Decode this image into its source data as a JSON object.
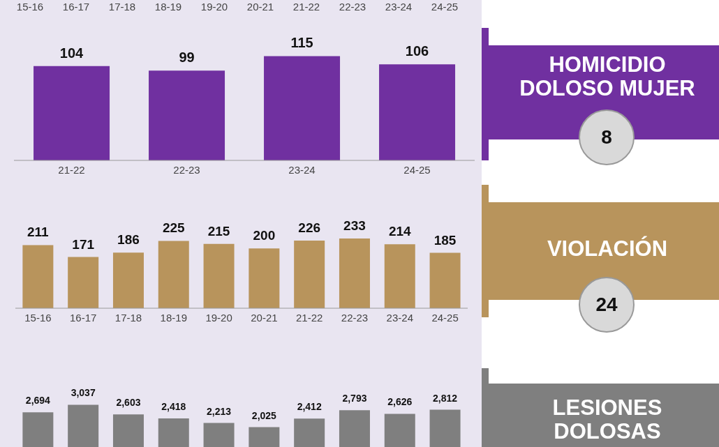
{
  "chart_data": [
    {
      "type": "other",
      "categories": [
        "15-16",
        "16-17",
        "17-18",
        "18-19",
        "19-20",
        "20-21",
        "21-22",
        "22-23",
        "23-24",
        "24-25"
      ]
    },
    {
      "type": "bar",
      "categories": [
        "21-22",
        "22-23",
        "23-24",
        "24-25"
      ],
      "values": [
        104,
        99,
        115,
        106
      ],
      "color": "#7030a0",
      "data_labels": true
    },
    {
      "type": "bar",
      "categories": [
        "15-16",
        "16-17",
        "17-18",
        "18-19",
        "19-20",
        "20-21",
        "21-22",
        "22-23",
        "23-24",
        "24-25"
      ],
      "values": [
        211,
        171,
        186,
        225,
        215,
        200,
        226,
        233,
        214,
        185
      ],
      "color": "#b8945c",
      "data_labels": true
    },
    {
      "type": "bar",
      "categories": [
        null,
        null,
        null,
        null,
        null,
        null,
        null,
        null,
        null,
        null
      ],
      "values": [
        2694,
        3037,
        2603,
        2418,
        2213,
        2025,
        2412,
        2793,
        2626,
        2812
      ],
      "value_labels": [
        "2,694",
        "3,037",
        "2,603",
        "2,418",
        "2,213",
        "2,025",
        "2,412",
        "2,793",
        "2,626",
        "2,812"
      ],
      "color": "#7f7f7f"
    },
    {
      "type": "other",
      "title": "HOMICIDIO DOLOSO MUJER",
      "annotations": [
        "8"
      ],
      "color": "#7030a0"
    },
    {
      "type": "other",
      "title": "VIOLACIÓN",
      "annotations": [
        "24"
      ],
      "color": "#b8945c"
    },
    {
      "type": "other",
      "title": "LESIONES DOLOSAS",
      "color": "#7f7f7f"
    }
  ]
}
